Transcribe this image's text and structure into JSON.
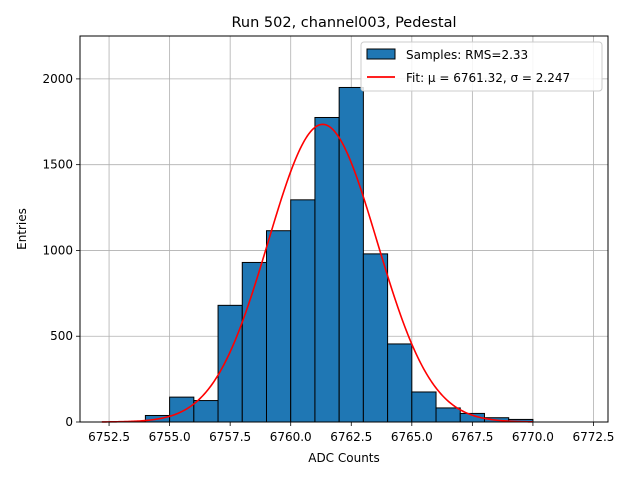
{
  "chart_data": {
    "type": "bar",
    "title": "Run 502, channel003, Pedestal",
    "xlabel": "ADC Counts",
    "ylabel": "Entries",
    "xlim": [
      6751.3,
      6773.1
    ],
    "ylim": [
      0,
      2250
    ],
    "grid": true,
    "x_ticks": [
      6752.5,
      6755.0,
      6757.5,
      6760.0,
      6762.5,
      6765.0,
      6767.5,
      6770.0,
      6772.5
    ],
    "x_tick_labels": [
      "6752.5",
      "6755.0",
      "6757.5",
      "6760.0",
      "6762.5",
      "6765.0",
      "6767.5",
      "6770.0",
      "6772.5"
    ],
    "y_ticks": [
      0,
      500,
      1000,
      1500,
      2000
    ],
    "y_tick_labels": [
      "0",
      "500",
      "1000",
      "1500",
      "2000"
    ],
    "bins": [
      {
        "left": 6753,
        "right": 6754,
        "count": 3
      },
      {
        "left": 6754,
        "right": 6755,
        "count": 38
      },
      {
        "left": 6755,
        "right": 6756,
        "count": 145
      },
      {
        "left": 6756,
        "right": 6757,
        "count": 125
      },
      {
        "left": 6757,
        "right": 6758,
        "count": 680
      },
      {
        "left": 6758,
        "right": 6759,
        "count": 930
      },
      {
        "left": 6759,
        "right": 6760,
        "count": 1115
      },
      {
        "left": 6760,
        "right": 6761,
        "count": 1295
      },
      {
        "left": 6761,
        "right": 6762,
        "count": 1775
      },
      {
        "left": 6762,
        "right": 6763,
        "count": 1950
      },
      {
        "left": 6763,
        "right": 6764,
        "count": 980
      },
      {
        "left": 6764,
        "right": 6765,
        "count": 455
      },
      {
        "left": 6765,
        "right": 6766,
        "count": 175
      },
      {
        "left": 6766,
        "right": 6767,
        "count": 82
      },
      {
        "left": 6767,
        "right": 6768,
        "count": 50
      },
      {
        "left": 6768,
        "right": 6769,
        "count": 25
      },
      {
        "left": 6769,
        "right": 6770,
        "count": 15
      }
    ],
    "fit": {
      "mu": 6761.32,
      "sigma": 2.247,
      "amplitude": 1735,
      "x_range": [
        6752.2,
        6770.0
      ]
    },
    "legend": {
      "position": "top-right",
      "entries": [
        {
          "label": "Samples: RMS=2.33",
          "kind": "patch",
          "color": "#1f77b4"
        },
        {
          "label": "Fit: μ = 6761.32, σ = 2.247",
          "kind": "line",
          "color": "#ff0000"
        }
      ]
    },
    "colors": {
      "bar": "#1f77b4",
      "bar_edge": "#000000",
      "fit": "#ff0000",
      "grid": "#b0b0b0"
    }
  }
}
